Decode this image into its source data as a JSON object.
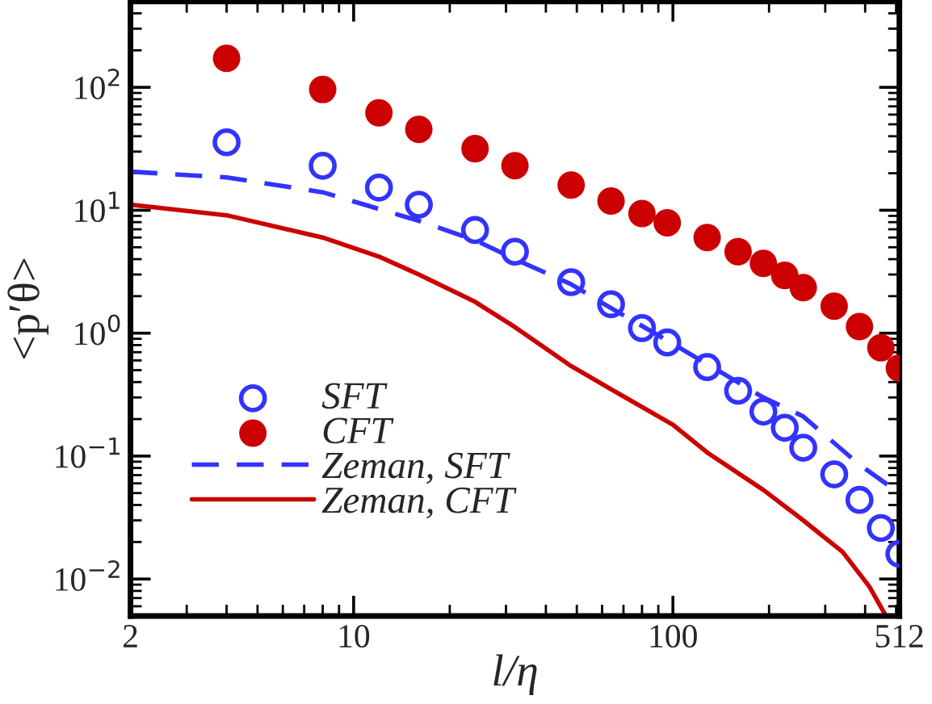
{
  "chart_data": {
    "type": "scatter",
    "xlabel": "l/η",
    "ylabel": "<p′θ>",
    "log": "xy",
    "grid": false,
    "legend": "lower left",
    "xlim": [
      2,
      512
    ],
    "xticks": [
      2,
      10,
      100,
      512
    ],
    "ylim": [
      0.005,
      500
    ],
    "yticks": [
      {
        "value": 0.01,
        "label": "10$^{−2}$"
      },
      {
        "value": 0.1,
        "label": "10$^{−1}$"
      },
      {
        "value": 1,
        "label": "10$^{0}$"
      },
      {
        "value": 10,
        "label": "10$^{1}$"
      },
      {
        "value": 100,
        "label": "10$^{2}$"
      }
    ],
    "series": [
      {
        "name": "SFT",
        "type": "scatter",
        "marker": "circle",
        "color": "#3333ff",
        "x": [
          4,
          8,
          12,
          16,
          24,
          32,
          48,
          64,
          80,
          96,
          128,
          160,
          192,
          224,
          256,
          320,
          384,
          448,
          512
        ],
        "values": [
          35.7,
          23,
          15.3,
          11.1,
          6.9,
          4.6,
          2.6,
          1.72,
          1.1,
          0.84,
          0.53,
          0.34,
          0.23,
          0.17,
          0.117,
          0.071,
          0.044,
          0.026,
          0.016
        ]
      },
      {
        "name": "CFT",
        "type": "scatter",
        "marker": "circle",
        "color": "#cc0000",
        "x": [
          4,
          8,
          12,
          16,
          24,
          32,
          48,
          64,
          80,
          96,
          128,
          160,
          192,
          224,
          256,
          320,
          384,
          448,
          512
        ],
        "values": [
          172,
          96,
          62,
          45.5,
          31.7,
          23,
          16,
          11.9,
          9.4,
          7.9,
          6.0,
          4.6,
          3.7,
          2.95,
          2.35,
          1.66,
          1.13,
          0.76,
          0.52
        ]
      },
      {
        "name": "Zeman, SFT",
        "type": "line",
        "line_style": "dashed",
        "color": "#3333ff",
        "x": [
          2,
          4,
          8,
          16,
          24,
          32,
          48,
          64,
          96,
          128,
          192,
          256,
          384,
          512
        ],
        "values": [
          20.6,
          18.5,
          14,
          8.2,
          5.7,
          4.0,
          2.5,
          1.6,
          0.87,
          0.56,
          0.3,
          0.21,
          0.085,
          0.05
        ]
      },
      {
        "name": "Zeman, CFT",
        "type": "line",
        "line_style": "solid",
        "color": "#cc0000",
        "x": [
          2,
          4,
          8,
          12,
          16,
          24,
          32,
          40,
          48,
          64,
          100,
          128,
          192,
          256,
          340,
          412,
          465
        ],
        "values": [
          11.1,
          9.1,
          6.0,
          4.2,
          3.0,
          1.8,
          1.12,
          0.75,
          0.54,
          0.35,
          0.18,
          0.107,
          0.053,
          0.03,
          0.0166,
          0.0087,
          0.005
        ]
      }
    ]
  }
}
